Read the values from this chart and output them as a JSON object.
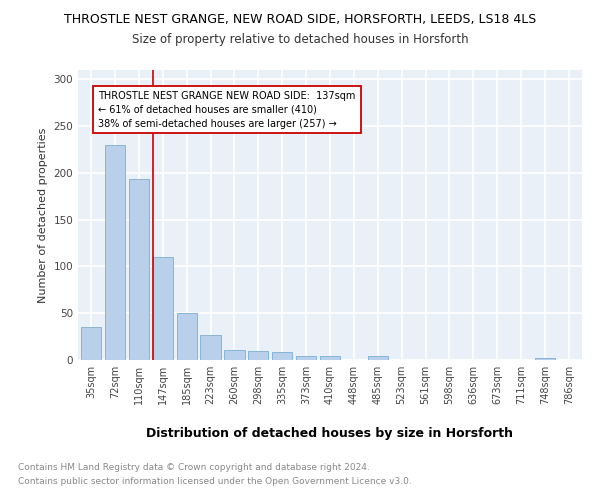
{
  "title1": "THROSTLE NEST GRANGE, NEW ROAD SIDE, HORSFORTH, LEEDS, LS18 4LS",
  "title2": "Size of property relative to detached houses in Horsforth",
  "xlabel": "Distribution of detached houses by size in Horsforth",
  "ylabel": "Number of detached properties",
  "categories": [
    "35sqm",
    "72sqm",
    "110sqm",
    "147sqm",
    "185sqm",
    "223sqm",
    "260sqm",
    "298sqm",
    "335sqm",
    "373sqm",
    "410sqm",
    "448sqm",
    "485sqm",
    "523sqm",
    "561sqm",
    "598sqm",
    "636sqm",
    "673sqm",
    "711sqm",
    "748sqm",
    "786sqm"
  ],
  "values": [
    35,
    230,
    193,
    110,
    50,
    27,
    11,
    10,
    9,
    4,
    4,
    0,
    4,
    0,
    0,
    0,
    0,
    0,
    0,
    2,
    0
  ],
  "bar_color": "#b8d0ea",
  "bar_edgecolor": "#7aadd4",
  "red_line_index": 3,
  "annotation_line1": "THROSTLE NEST GRANGE NEW ROAD SIDE:  137sqm",
  "annotation_line2": "← 61% of detached houses are smaller (410)",
  "annotation_line3": "38% of semi-detached houses are larger (257) →",
  "annotation_box_color": "#ffffff",
  "annotation_box_edgecolor": "#cc0000",
  "ylim": [
    0,
    310
  ],
  "yticks": [
    0,
    50,
    100,
    150,
    200,
    250,
    300
  ],
  "footer1": "Contains HM Land Registry data © Crown copyright and database right 2024.",
  "footer2": "Contains public sector information licensed under the Open Government Licence v3.0.",
  "background_color": "#eaf0f8",
  "grid_color": "#ffffff",
  "title1_fontsize": 9,
  "title2_fontsize": 8.5,
  "ylabel_fontsize": 8,
  "xlabel_fontsize": 9,
  "tick_fontsize": 7,
  "footer_fontsize": 6.5
}
